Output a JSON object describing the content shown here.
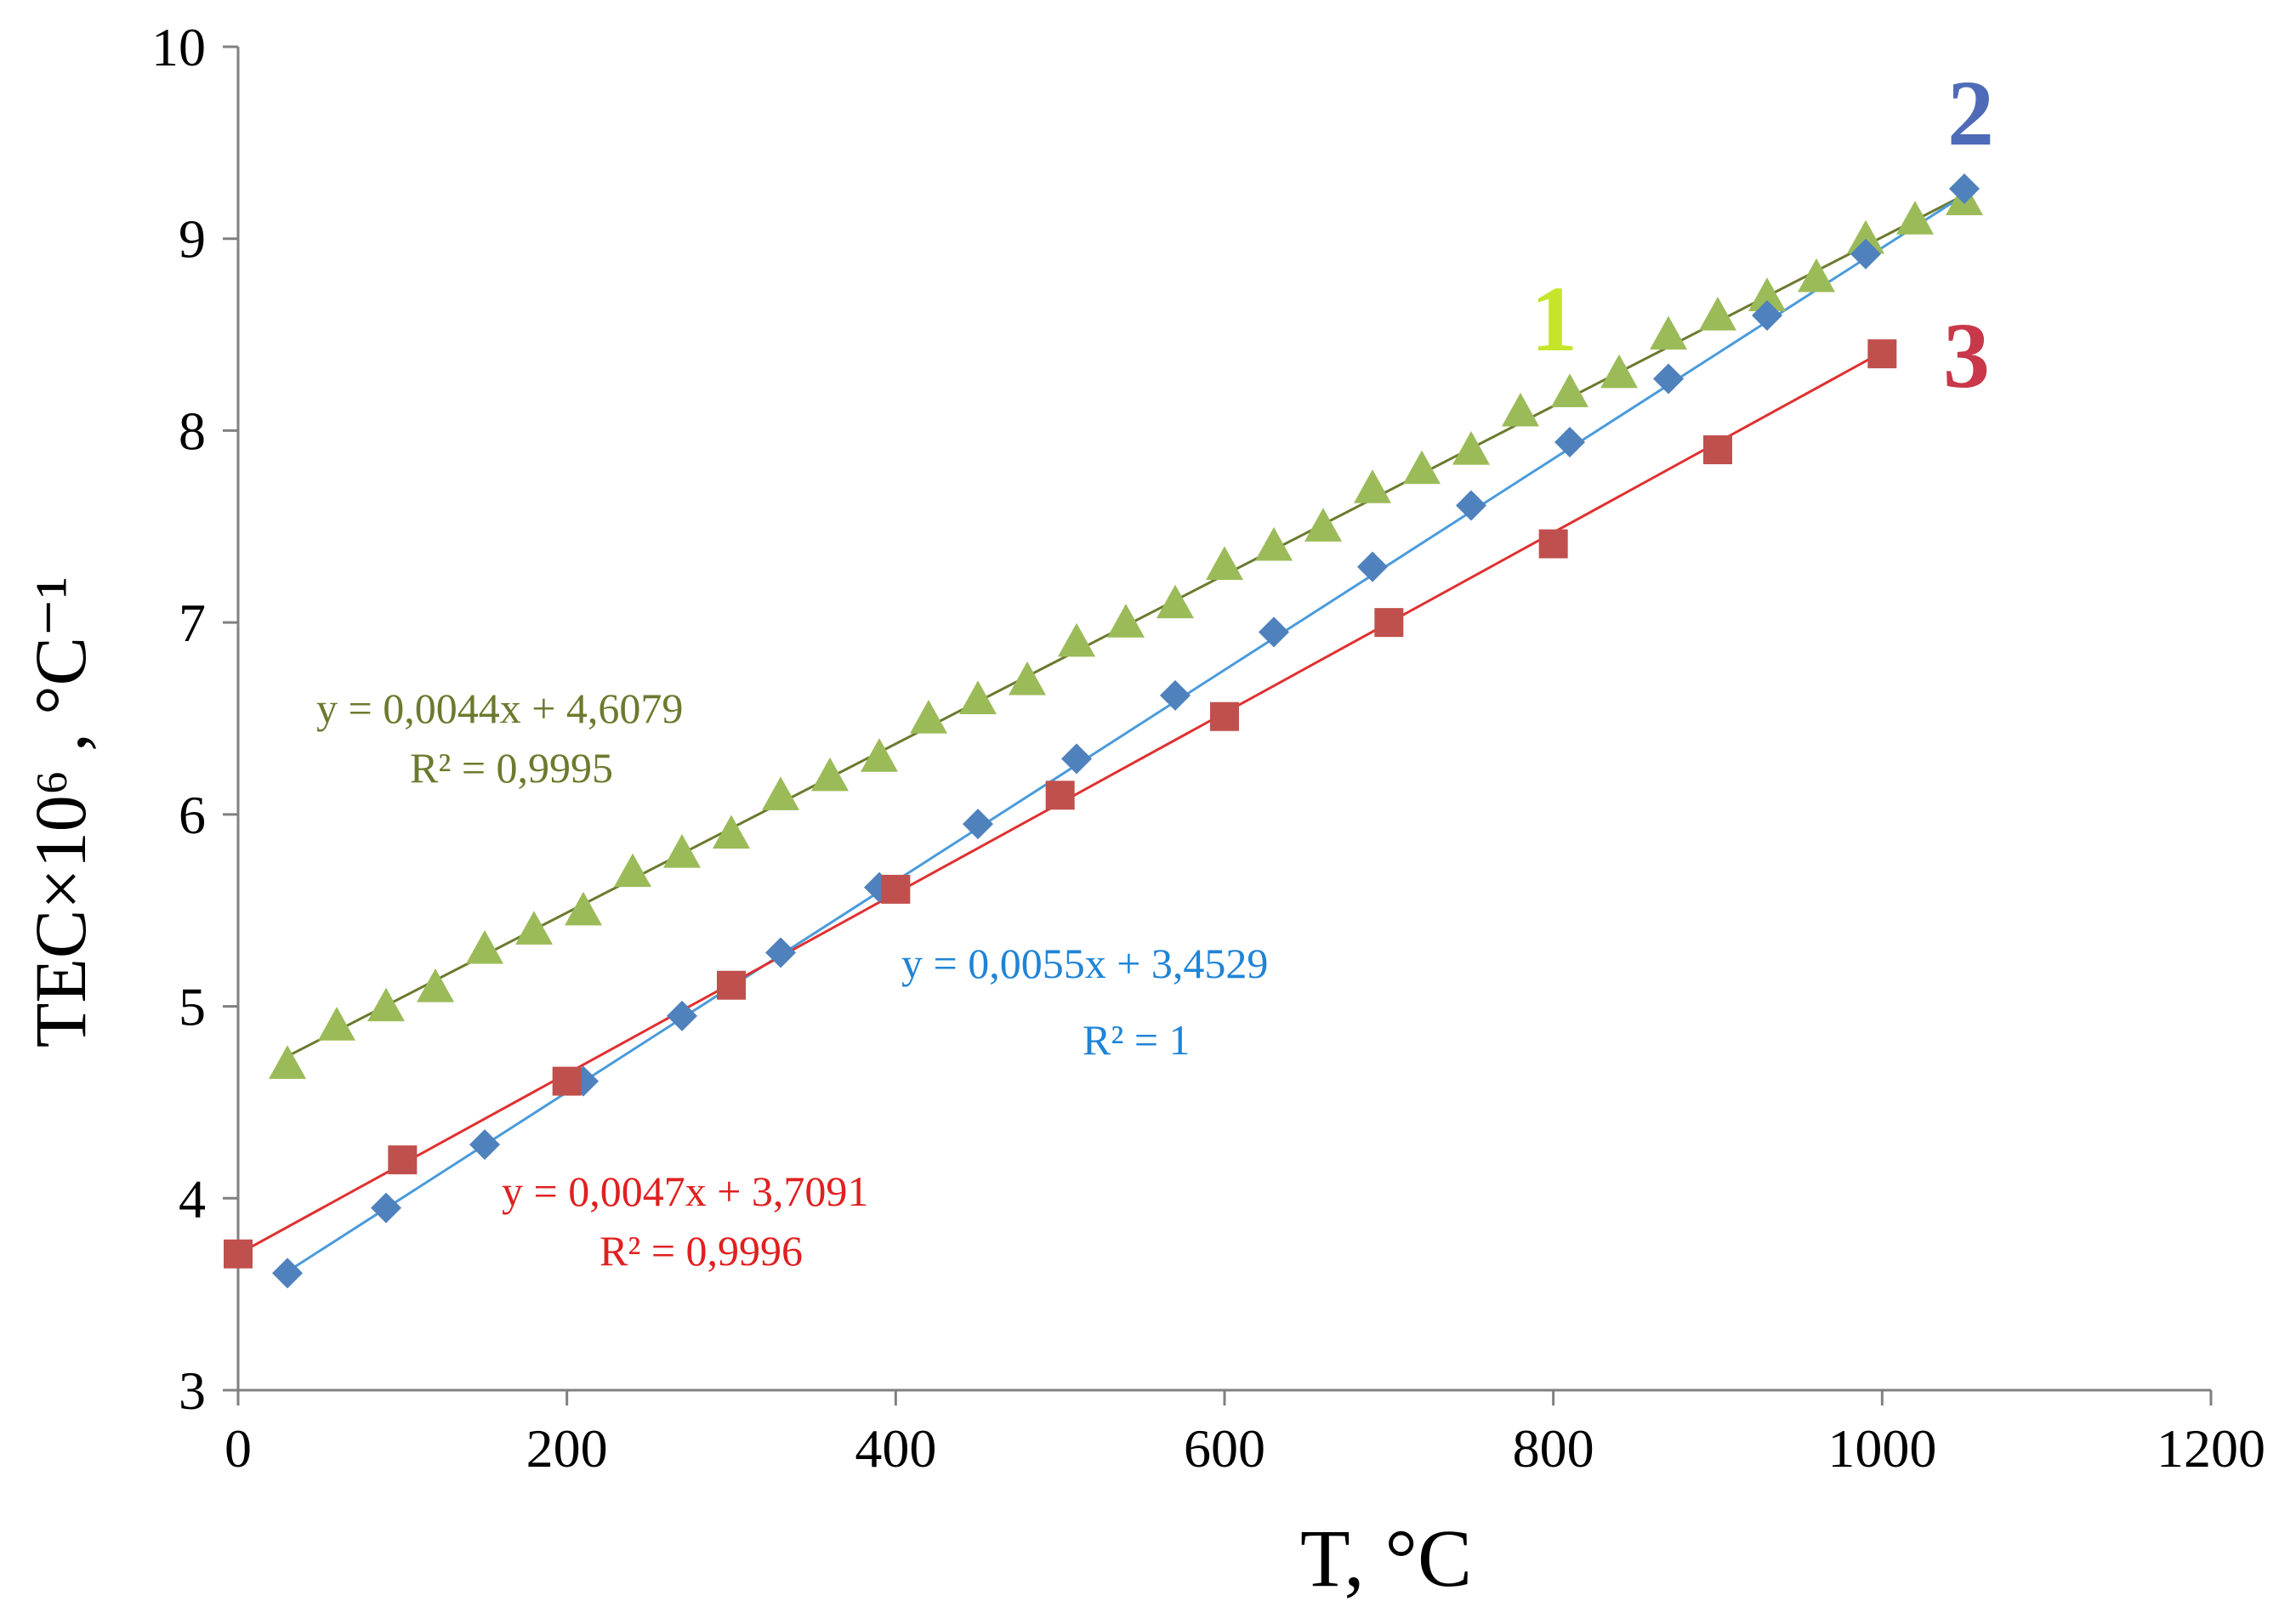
{
  "chart_data": {
    "type": "scatter",
    "title": "",
    "xlabel": "T, °C",
    "ylabel": "TEC×10⁶ , °C⁻¹",
    "xlim": [
      0,
      1200
    ],
    "ylim": [
      3,
      10
    ],
    "xticks": [
      "0",
      "200",
      "400",
      "600",
      "800",
      "1000",
      "1200"
    ],
    "yticks": [
      "3",
      "4",
      "5",
      "6",
      "7",
      "8",
      "9",
      "10"
    ],
    "grid": false,
    "series": [
      {
        "name": "1",
        "marker": "triangle",
        "color": "#9BBB59",
        "line_color": "#6B7A2E",
        "label_color": "#C5E52A",
        "x": [
          30,
          60,
          90,
          120,
          150,
          180,
          210,
          240,
          270,
          300,
          330,
          360,
          390,
          420,
          450,
          480,
          510,
          540,
          570,
          600,
          630,
          660,
          690,
          720,
          750,
          780,
          810,
          840,
          870,
          900,
          930,
          960,
          990,
          1020,
          1050
        ],
        "y": [
          4.7,
          4.9,
          5.0,
          5.1,
          5.3,
          5.4,
          5.5,
          5.7,
          5.8,
          5.9,
          6.1,
          6.2,
          6.3,
          6.5,
          6.6,
          6.7,
          6.9,
          7.0,
          7.1,
          7.3,
          7.4,
          7.5,
          7.7,
          7.8,
          7.9,
          8.1,
          8.2,
          8.3,
          8.5,
          8.6,
          8.7,
          8.8,
          9.0,
          9.1,
          9.2
        ],
        "trend": {
          "slope": 0.0044,
          "intercept": 4.6079,
          "x_range": [
            30,
            1050
          ]
        },
        "equation": "y = 0,0044x + 4,6079",
        "r2": "R² = 0,9995"
      },
      {
        "name": "2",
        "marker": "diamond",
        "color": "#4F81BD",
        "line_color": "#4A9BDB",
        "label_color": "#4F6BB8",
        "x": [
          30,
          90,
          150,
          210,
          270,
          330,
          390,
          450,
          510,
          570,
          630,
          690,
          750,
          810,
          870,
          930,
          990,
          1050
        ],
        "y": [
          3.61,
          3.95,
          4.28,
          4.61,
          4.95,
          5.28,
          5.62,
          5.95,
          6.29,
          6.62,
          6.95,
          7.29,
          7.61,
          7.94,
          8.27,
          8.6,
          8.92,
          9.26
        ],
        "trend": {
          "slope": 0.0055,
          "intercept": 3.4529,
          "x_range": [
            30,
            1050
          ]
        },
        "equation": "y = 0,0055x + 3,4529",
        "r2": "R² = 1"
      },
      {
        "name": "3",
        "marker": "square",
        "color": "#C0504D",
        "line_color": "#E03030",
        "label_color": "#C8384A",
        "x": [
          0,
          100,
          200,
          300,
          400,
          500,
          600,
          700,
          800,
          900,
          1000
        ],
        "y": [
          3.71,
          4.2,
          4.61,
          5.11,
          5.61,
          6.1,
          6.51,
          7.0,
          7.41,
          7.9,
          8.4
        ],
        "trend": {
          "slope": 0.0047,
          "intercept": 3.7091,
          "x_range": [
            0,
            1000
          ]
        },
        "equation": "y = 0,0047x + 3,7091",
        "r2": "R² = 0,9996"
      }
    ]
  },
  "colors": {
    "eq1": "#6B7A2E",
    "eq2": "#1F84D6",
    "eq3": "#E02020"
  }
}
